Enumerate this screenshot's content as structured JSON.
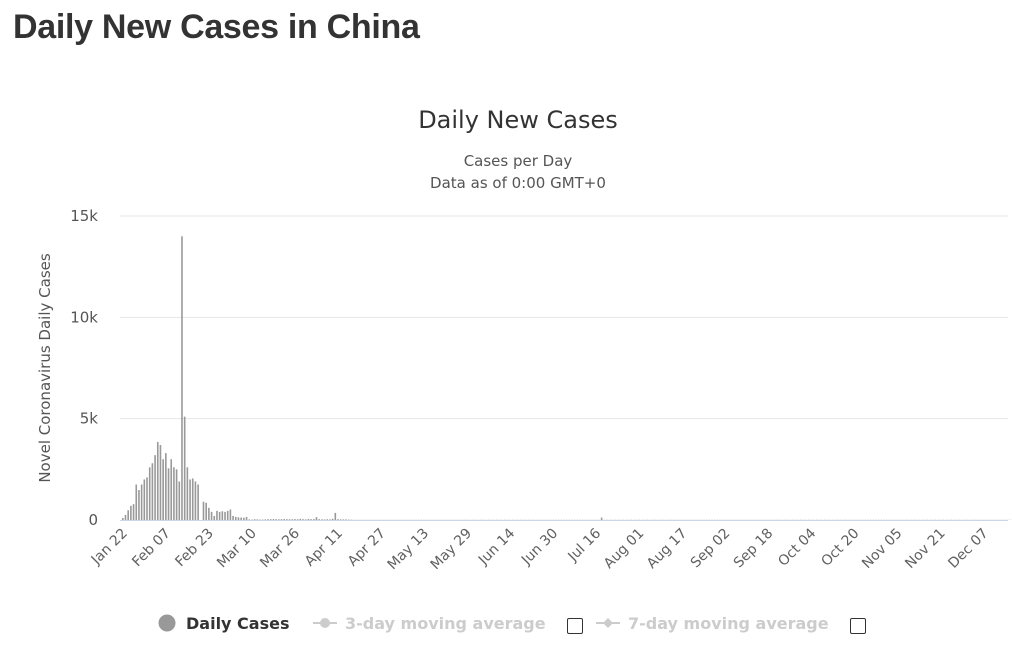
{
  "page": {
    "title": "Daily New Cases in China"
  },
  "colors": {
    "bars": "#999999",
    "axis": "#ccd6eb",
    "grid": "#e6e6e6",
    "legend_inactive": "#cccccc"
  },
  "chart_data": {
    "type": "bar",
    "title": "Daily New Cases",
    "subtitle_lines": [
      "Cases per Day",
      "Data as of 0:00 GMT+0"
    ],
    "ylabel": "Novel Coronavirus Daily Cases",
    "xlabel": "",
    "ylim": [
      0,
      15000
    ],
    "yticks": [
      0,
      5000,
      10000,
      15000
    ],
    "ytick_labels": [
      "0",
      "5k",
      "10k",
      "15k"
    ],
    "grid": true,
    "xtick_labels": [
      "Jan 22",
      "Feb 07",
      "Feb 23",
      "Mar 10",
      "Mar 26",
      "Apr 11",
      "Apr 27",
      "May 13",
      "May 29",
      "Jun 14",
      "Jun 30",
      "Jul 16",
      "Aug 01",
      "Aug 17",
      "Sep 02",
      "Sep 18",
      "Oct 04",
      "Oct 20",
      "Nov 05",
      "Nov 21",
      "Dec 07"
    ],
    "x_start_date": "Jan 22",
    "series": [
      {
        "name": "Daily Cases",
        "values": [
          100,
          250,
          480,
          700,
          780,
          1750,
          1480,
          1750,
          2000,
          2100,
          2600,
          2800,
          3200,
          3850,
          3700,
          3000,
          3300,
          2550,
          3000,
          2600,
          2500,
          1900,
          14000,
          5100,
          2600,
          2000,
          2050,
          1900,
          1750,
          0,
          900,
          850,
          600,
          400,
          200,
          450,
          400,
          430,
          400,
          450,
          520,
          200,
          150,
          130,
          120,
          110,
          150,
          30,
          20,
          40,
          30,
          20,
          20,
          30,
          40,
          40,
          45,
          40,
          35,
          40,
          45,
          40,
          35,
          35,
          45,
          40,
          60,
          40,
          30,
          50,
          40,
          45,
          140,
          40,
          35,
          30,
          35,
          30,
          60,
          350,
          40,
          30,
          30,
          30,
          20,
          15,
          10,
          10,
          10,
          10,
          10,
          10,
          10,
          10,
          10,
          10,
          10,
          10,
          10,
          10,
          10,
          10,
          10,
          10,
          10,
          10,
          10,
          10,
          10,
          10,
          10,
          10,
          10,
          10,
          10,
          10,
          10,
          10,
          10,
          10,
          10,
          10,
          10,
          10,
          10,
          10,
          10,
          10,
          10,
          10,
          10,
          10,
          10,
          10,
          10,
          10,
          10,
          10,
          10,
          10,
          10,
          10,
          10,
          10,
          10,
          10,
          10,
          10,
          10,
          10,
          10,
          10,
          10,
          10,
          10,
          10,
          10,
          10,
          10,
          10,
          10,
          10,
          10,
          10,
          10,
          10,
          10,
          10,
          10,
          10,
          10,
          10,
          10,
          10,
          10,
          10,
          10,
          10,
          120,
          10,
          10,
          10,
          10,
          10,
          10,
          10,
          10,
          10,
          10,
          10,
          10,
          10,
          10,
          10,
          10,
          10,
          10,
          10,
          10,
          10,
          10,
          10,
          10,
          10,
          10,
          10,
          10,
          10,
          10,
          10,
          10,
          10,
          10,
          10,
          10,
          10,
          10,
          10,
          10,
          10,
          10,
          10,
          10,
          10,
          10,
          10,
          10,
          10,
          10,
          10,
          10,
          10,
          10,
          10,
          10,
          10,
          10,
          10,
          10,
          10,
          10,
          10,
          10,
          10,
          10,
          10,
          10,
          10,
          10,
          10,
          10,
          10,
          10,
          10,
          10,
          10,
          10,
          10,
          10,
          10,
          10,
          10,
          10,
          10,
          10,
          10,
          10,
          10,
          10,
          10,
          10,
          10,
          10,
          10,
          10,
          10,
          10,
          10,
          10,
          10,
          10,
          10,
          10,
          10,
          10,
          10,
          10,
          10,
          10,
          10,
          10,
          10,
          10,
          10,
          10,
          10,
          10,
          10,
          10,
          10,
          10,
          10,
          10,
          10,
          10,
          10,
          10,
          10,
          10,
          10,
          10,
          10,
          10,
          10,
          10,
          10,
          10,
          10,
          10,
          10,
          10,
          10,
          10,
          10,
          10,
          10,
          10,
          10,
          10,
          10,
          10,
          10,
          10,
          10,
          10,
          10,
          10,
          10,
          10,
          10
        ]
      }
    ],
    "legend": {
      "placement": "bottom-center",
      "items": [
        {
          "label": "Daily Cases",
          "active": true
        },
        {
          "label": "3-day moving average",
          "active": false,
          "checked": false
        },
        {
          "label": "7-day moving average",
          "active": false,
          "checked": false
        }
      ]
    }
  }
}
